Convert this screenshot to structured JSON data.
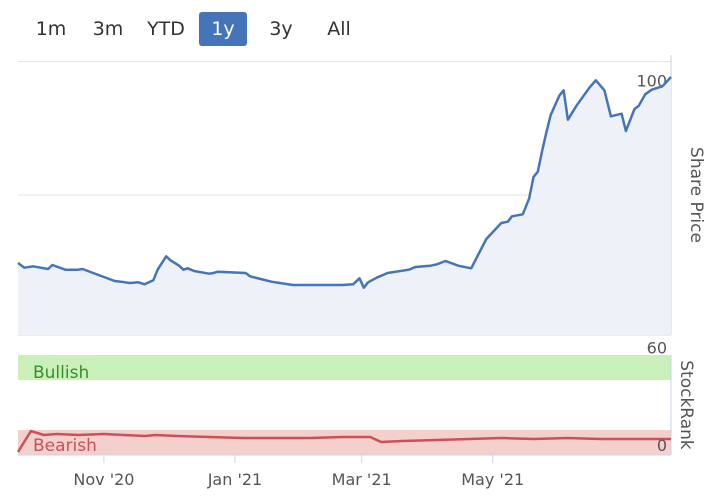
{
  "range_selector": {
    "buttons": [
      {
        "label": "1m",
        "active": false
      },
      {
        "label": "3m",
        "active": false
      },
      {
        "label": "YTD",
        "active": false
      },
      {
        "label": "1y",
        "active": true
      },
      {
        "label": "3y",
        "active": false
      },
      {
        "label": "All",
        "active": false
      }
    ]
  },
  "colors": {
    "price_line": "#4674b8",
    "price_fill": "#eef1f8",
    "bullish_band": "#c9f0b8",
    "bearish_band": "#f4d0cc",
    "bullish_text": "#3a8f2c",
    "bearish_text": "#c9525a",
    "rank_line": "#c9525a",
    "active_button": "#4674b8"
  },
  "chart_data": [
    {
      "type": "line",
      "title": "",
      "ylabel": "Share Price",
      "ylim": [
        59,
        101
      ],
      "yticks": [
        60,
        80,
        100
      ],
      "x_tick_labels": [
        "Nov '20",
        "Jan '21",
        "Mar '21",
        "May '21"
      ],
      "xlim": [
        "2020-09-22",
        "2021-07-23"
      ],
      "grid": true,
      "series": [
        {
          "name": "",
          "x": [
            "2020-09-22",
            "2020-09-25",
            "2020-09-29",
            "2020-10-06",
            "2020-10-08",
            "2020-10-14",
            "2020-10-20",
            "2020-10-22",
            "2020-11-06",
            "2020-11-09",
            "2020-11-13",
            "2020-11-17",
            "2020-11-20",
            "2020-11-24",
            "2020-11-26",
            "2020-11-30",
            "2020-12-02",
            "2020-12-06",
            "2020-12-08",
            "2020-12-10",
            "2020-12-13",
            "2020-12-20",
            "2020-12-22",
            "2020-12-24",
            "2021-01-06",
            "2021-01-08",
            "2021-01-13",
            "2021-01-18",
            "2021-01-28",
            "2021-02-20",
            "2021-02-25",
            "2021-02-28",
            "2021-03-02",
            "2021-03-04",
            "2021-03-08",
            "2021-03-13",
            "2021-03-23",
            "2021-03-26",
            "2021-03-30",
            "2021-04-02",
            "2021-04-05",
            "2021-04-09",
            "2021-04-15",
            "2021-04-21",
            "2021-04-28",
            "2021-05-05",
            "2021-05-08",
            "2021-05-10",
            "2021-05-15",
            "2021-05-18",
            "2021-05-20",
            "2021-05-22",
            "2021-05-24",
            "2021-05-26",
            "2021-05-28",
            "2021-06-01",
            "2021-06-03",
            "2021-06-05",
            "2021-06-09",
            "2021-06-15",
            "2021-06-18",
            "2021-06-22",
            "2021-06-25",
            "2021-06-30",
            "2021-07-02",
            "2021-07-06",
            "2021-07-08",
            "2021-07-11",
            "2021-07-14",
            "2021-07-16",
            "2021-07-19",
            "2021-07-21",
            "2021-07-23"
          ],
          "values": [
            69.8,
            69.1,
            69.3,
            68.9,
            69.5,
            68.8,
            68.8,
            68.9,
            67.1,
            67.0,
            66.8,
            66.9,
            66.6,
            67.2,
            68.8,
            70.8,
            70.2,
            69.4,
            68.8,
            69.0,
            68.6,
            68.2,
            68.3,
            68.5,
            68.3,
            67.8,
            67.4,
            67.0,
            66.5,
            66.5,
            66.6,
            67.5,
            66.1,
            66.9,
            67.6,
            68.3,
            68.8,
            69.2,
            69.3,
            69.4,
            69.6,
            70.1,
            69.4,
            69.0,
            73.4,
            75.8,
            76.0,
            76.8,
            77.1,
            79.5,
            82.7,
            83.5,
            86.6,
            89.4,
            92.0,
            94.9,
            95.7,
            91.3,
            93.4,
            96.1,
            97.2,
            95.7,
            91.8,
            92.2,
            89.6,
            92.9,
            93.4,
            95.1,
            95.8,
            96.0,
            96.3,
            97.0,
            97.7
          ]
        }
      ]
    },
    {
      "type": "line",
      "title": "",
      "ylabel": "StockRank",
      "ylim": [
        0,
        100
      ],
      "yticks": [
        0
      ],
      "band_labels": [
        "Bullish",
        "Bearish"
      ],
      "series": [
        {
          "name": "",
          "x": [
            "2020-09-22",
            "2020-09-28",
            "2020-10-04",
            "2020-10-10",
            "2020-10-20",
            "2020-11-01",
            "2020-11-10",
            "2020-11-20",
            "2020-11-25",
            "2020-12-05",
            "2020-12-20",
            "2021-01-05",
            "2021-01-20",
            "2021-02-05",
            "2021-02-20",
            "2021-03-05",
            "2021-03-10",
            "2021-03-20",
            "2021-04-05",
            "2021-04-20",
            "2021-05-05",
            "2021-05-20",
            "2021-06-05",
            "2021-06-20",
            "2021-07-05",
            "2021-07-23"
          ],
          "values": [
            3,
            24,
            20,
            21,
            20,
            21,
            20,
            19,
            20,
            19,
            18,
            17,
            17,
            17,
            18,
            18,
            13,
            14,
            15,
            16,
            17,
            16,
            17,
            16,
            16,
            16
          ]
        }
      ]
    }
  ]
}
